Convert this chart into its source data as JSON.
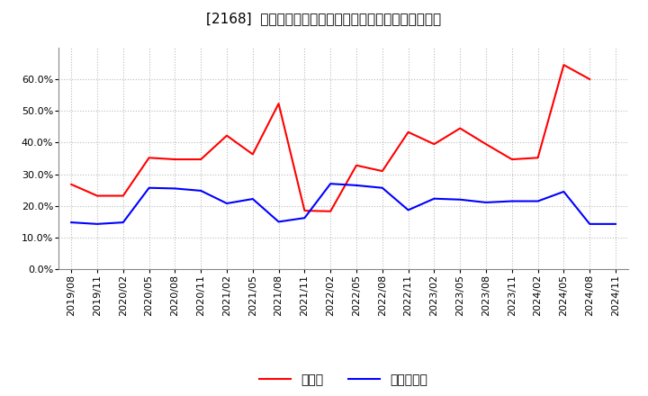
{
  "title": "[2168]  現預金、有利子負債の総資産に対する比率の推移",
  "x_labels": [
    "2019/08",
    "2019/11",
    "2020/02",
    "2020/05",
    "2020/08",
    "2020/11",
    "2021/02",
    "2021/05",
    "2021/08",
    "2021/11",
    "2022/02",
    "2022/05",
    "2022/08",
    "2022/11",
    "2023/02",
    "2023/05",
    "2023/08",
    "2023/11",
    "2024/02",
    "2024/05",
    "2024/08",
    "2024/11"
  ],
  "cash_values": [
    0.268,
    0.232,
    0.232,
    0.352,
    0.347,
    0.347,
    0.422,
    0.363,
    0.523,
    0.185,
    0.183,
    0.328,
    0.31,
    0.433,
    0.395,
    0.445,
    0.395,
    0.347,
    0.352,
    0.645,
    0.6,
    null
  ],
  "debt_values": [
    0.148,
    0.143,
    0.148,
    0.257,
    0.255,
    0.248,
    0.208,
    0.222,
    0.15,
    0.162,
    0.27,
    0.265,
    0.257,
    0.187,
    0.223,
    0.22,
    0.211,
    0.215,
    0.215,
    0.245,
    0.143,
    0.143
  ],
  "cash_color": "#ff0000",
  "debt_color": "#0000ff",
  "background_color": "#ffffff",
  "plot_bg_color": "#ffffff",
  "grid_color": "#bbbbbb",
  "ylim": [
    0.0,
    0.7
  ],
  "yticks": [
    0.0,
    0.1,
    0.2,
    0.3,
    0.4,
    0.5,
    0.6
  ],
  "legend_cash": "現預金",
  "legend_debt": "有利子負債",
  "title_fontsize": 11,
  "axis_fontsize": 8,
  "legend_fontsize": 10
}
